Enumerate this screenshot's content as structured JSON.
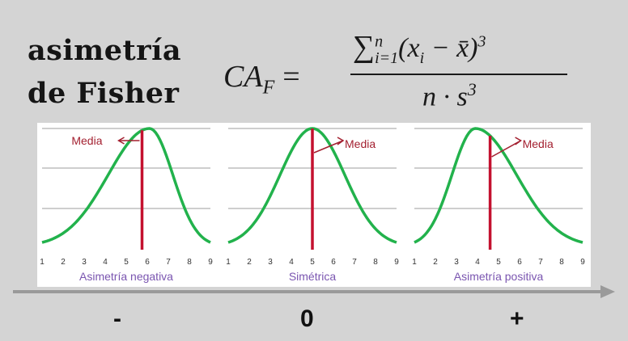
{
  "title": {
    "line1": "asimetría",
    "line2": "de Fisher"
  },
  "formula": {
    "lhs": "CA",
    "lhs_sub": "F",
    "equals": "=",
    "sigma": "∑",
    "sum_lower": "i=1",
    "sum_upper": "n",
    "numerator_body": "(x",
    "numerator_sub": "i",
    "numerator_rest": " − x̄)",
    "numerator_power": "3",
    "denominator": "n · s",
    "denominator_power": "3"
  },
  "panels": [
    {
      "caption": "Asimetría negativa",
      "mean_label": "Media",
      "mean_x": 5.75,
      "peak_x": 6.1,
      "label_side": "left"
    },
    {
      "caption": "Simétrica",
      "mean_label": "Media",
      "mean_x": 5.0,
      "peak_x": 5.0,
      "label_side": "right"
    },
    {
      "caption": "Asimetría positiva",
      "mean_label": "Media",
      "mean_x": 4.6,
      "peak_x": 3.9,
      "label_side": "right"
    }
  ],
  "tick_labels": [
    "1",
    "2",
    "3",
    "4",
    "5",
    "6",
    "7",
    "8",
    "9"
  ],
  "signs": [
    "-",
    "0",
    "+"
  ],
  "colors": {
    "curve": "#22b24c",
    "mean_line": "#c4112f",
    "label": "#a31f2f",
    "caption": "#7a55b0",
    "grid": "#bdbdbd",
    "arrow": "#9a9a9a"
  }
}
